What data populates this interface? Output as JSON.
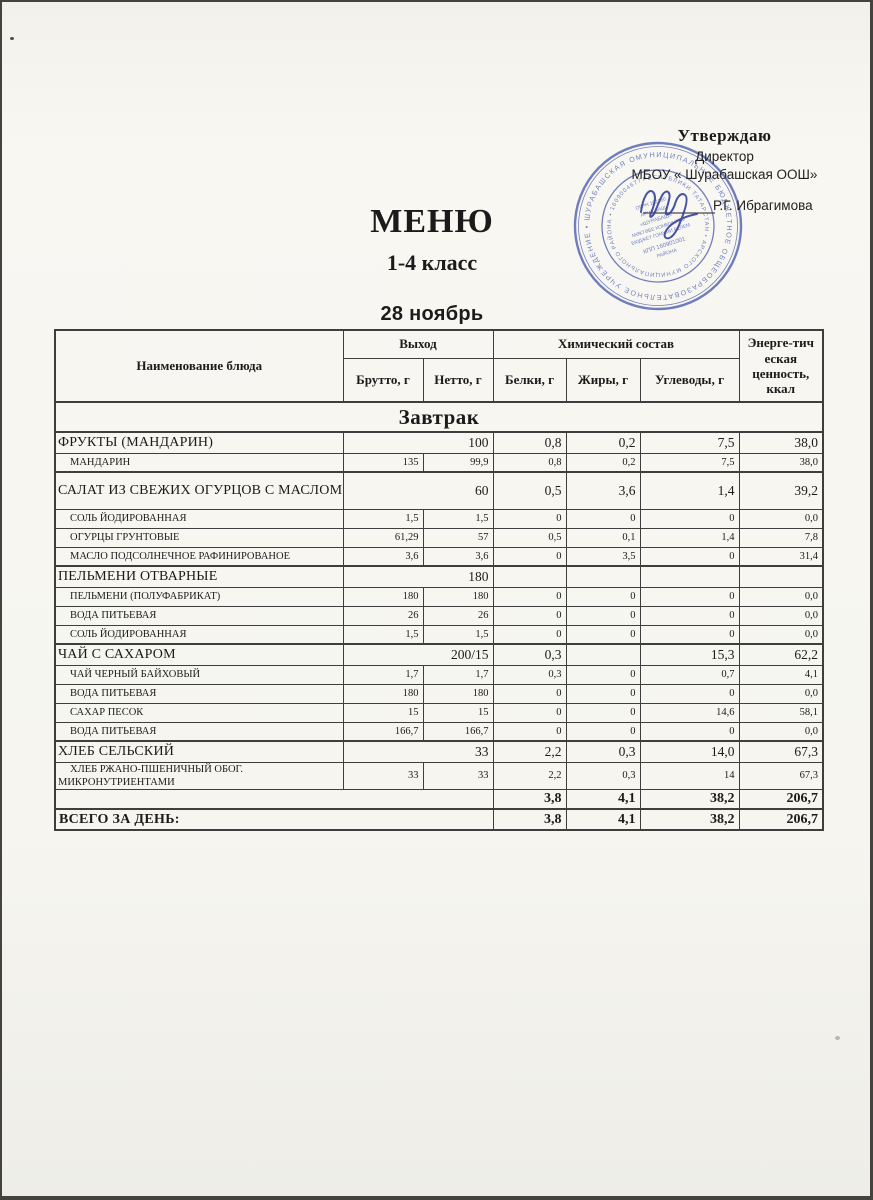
{
  "page": {
    "title": "МЕНЮ",
    "subtitle": "1-4 класс",
    "date": "28 ноябрь"
  },
  "approval": {
    "approve_label": "Утверждаю",
    "role": "Директор",
    "school": "МБОУ « Шурабашская ООШ»",
    "director_name": "Р.Г. Ибрагимова"
  },
  "stamp": {
    "outer_text": "МУНИЦИПАЛЬНОЕ БЮДЖЕТНОЕ ОБЩЕОБРАЗОВАТЕЛЬНОЕ УЧРЕЖДЕНИЕ • ШУРАБАШСКАЯ ОСНОВНАЯ ОБЩЕОБРАЗОВАТЕЛЬНАЯ ШКОЛА •",
    "inner_text": "РЕСПУБЛИКИ ТАТАРСТАН • АРСКОГО МУНИЦИПАЛЬНОГО РАЙОНА • 1609004677 •",
    "center_lines": [
      "ОГРН 102160",
      "АРЧА-БАШ",
      "«ШУРАБАШ»",
      "МӘКТӘБЕ КОММУНАЛЬ",
      "БЮДЖЕТ ГОМУМИ БЕЛЕМ",
      "КПП 160901001",
      "РАЙОНА"
    ]
  },
  "table": {
    "headers": {
      "dish": "Наименование блюда",
      "output_group": "Выход",
      "brutto": "Брутто, г",
      "netto": "Нетто, г",
      "chem_group": "Химический состав",
      "protein": "Белки, г",
      "fat": "Жиры, г",
      "carbs": "Углеводы, г",
      "energy": "Энерге-тич еская ценность, ккал"
    },
    "section": "Завтрак",
    "rows": [
      {
        "type": "dish",
        "name": "ФРУКТЫ (МАНДАРИН)",
        "output": "100",
        "protein": "0,8",
        "fat": "0,2",
        "carbs": "7,5",
        "energy": "38,0"
      },
      {
        "type": "ingredient",
        "name": "МАНДАРИН",
        "brutto": "135",
        "netto": "99,9",
        "protein": "0,8",
        "fat": "0,2",
        "carbs": "7,5",
        "energy": "38,0"
      },
      {
        "type": "dish",
        "tall": true,
        "name": "САЛАТ ИЗ СВЕЖИХ ОГУРЦОВ С МАСЛОМ",
        "output": "60",
        "protein": "0,5",
        "fat": "3,6",
        "carbs": "1,4",
        "energy": "39,2"
      },
      {
        "type": "ingredient",
        "name": "СОЛЬ  ЙОДИРОВАННАЯ",
        "brutto": "1,5",
        "netto": "1,5",
        "protein": "0",
        "fat": "0",
        "carbs": "0",
        "energy": "0,0"
      },
      {
        "type": "ingredient",
        "name": "ОГУРЦЫ ГРУНТОВЫЕ",
        "brutto": "61,29",
        "netto": "57",
        "protein": "0,5",
        "fat": "0,1",
        "carbs": "1,4",
        "energy": "7,8"
      },
      {
        "type": "ingredient",
        "name": "МАСЛО ПОДСОЛНЕЧНОЕ РАФИНИРОВАНОЕ",
        "brutto": "3,6",
        "netto": "3,6",
        "protein": "0",
        "fat": "3,5",
        "carbs": "0",
        "energy": "31,4"
      },
      {
        "type": "dish",
        "name": "ПЕЛЬМЕНИ ОТВАРНЫЕ",
        "output": "180",
        "protein": "",
        "fat": "",
        "carbs": "",
        "energy": ""
      },
      {
        "type": "ingredient",
        "name": "ПЕЛЬМЕНИ (ПОЛУФАБРИКАТ)",
        "brutto": "180",
        "netto": "180",
        "protein": "0",
        "fat": "0",
        "carbs": "0",
        "energy": "0,0"
      },
      {
        "type": "ingredient",
        "name": "ВОДА ПИТЬЕВАЯ",
        "brutto": "26",
        "netto": "26",
        "protein": "0",
        "fat": "0",
        "carbs": "0",
        "energy": "0,0"
      },
      {
        "type": "ingredient",
        "name": "СОЛЬ  ЙОДИРОВАННАЯ",
        "brutto": "1,5",
        "netto": "1,5",
        "protein": "0",
        "fat": "0",
        "carbs": "0",
        "energy": "0,0"
      },
      {
        "type": "dish",
        "name": "ЧАЙ С САХАРОМ",
        "output": "200/15",
        "protein": "0,3",
        "fat": "",
        "carbs": "15,3",
        "energy": "62,2"
      },
      {
        "type": "ingredient",
        "name": "ЧАЙ ЧЕРНЫЙ БАЙХОВЫЙ",
        "brutto": "1,7",
        "netto": "1,7",
        "protein": "0,3",
        "fat": "0",
        "carbs": "0,7",
        "energy": "4,1"
      },
      {
        "type": "ingredient",
        "name": "ВОДА ПИТЬЕВАЯ",
        "brutto": "180",
        "netto": "180",
        "protein": "0",
        "fat": "0",
        "carbs": "0",
        "energy": "0,0"
      },
      {
        "type": "ingredient",
        "name": "САХАР ПЕСОК",
        "brutto": "15",
        "netto": "15",
        "protein": "0",
        "fat": "0",
        "carbs": "14,6",
        "energy": "58,1"
      },
      {
        "type": "ingredient",
        "name": "ВОДА ПИТЬЕВАЯ",
        "brutto": "166,7",
        "netto": "166,7",
        "protein": "0",
        "fat": "0",
        "carbs": "0",
        "energy": "0,0"
      },
      {
        "type": "dish",
        "name": "ХЛЕБ СЕЛЬСКИЙ",
        "output": "33",
        "protein": "2,2",
        "fat": "0,3",
        "carbs": "14,0",
        "energy": "67,3"
      },
      {
        "type": "ingredient",
        "name": "ХЛЕБ РЖАНО-ПШЕНИЧНЫЙ ОБОГ. МИКРОНУТРИЕНТАМИ",
        "brutto": "33",
        "netto": "33",
        "protein": "2,2",
        "fat": "0,3",
        "carbs": "14",
        "energy": "67,3"
      },
      {
        "type": "subtotal",
        "name": "",
        "protein": "3,8",
        "fat": "4,1",
        "carbs": "38,2",
        "energy": "206,7"
      },
      {
        "type": "total",
        "name": "ВСЕГО ЗА ДЕНЬ:",
        "protein": "3,8",
        "fat": "4,1",
        "carbs": "38,2",
        "energy": "206,7"
      }
    ]
  }
}
